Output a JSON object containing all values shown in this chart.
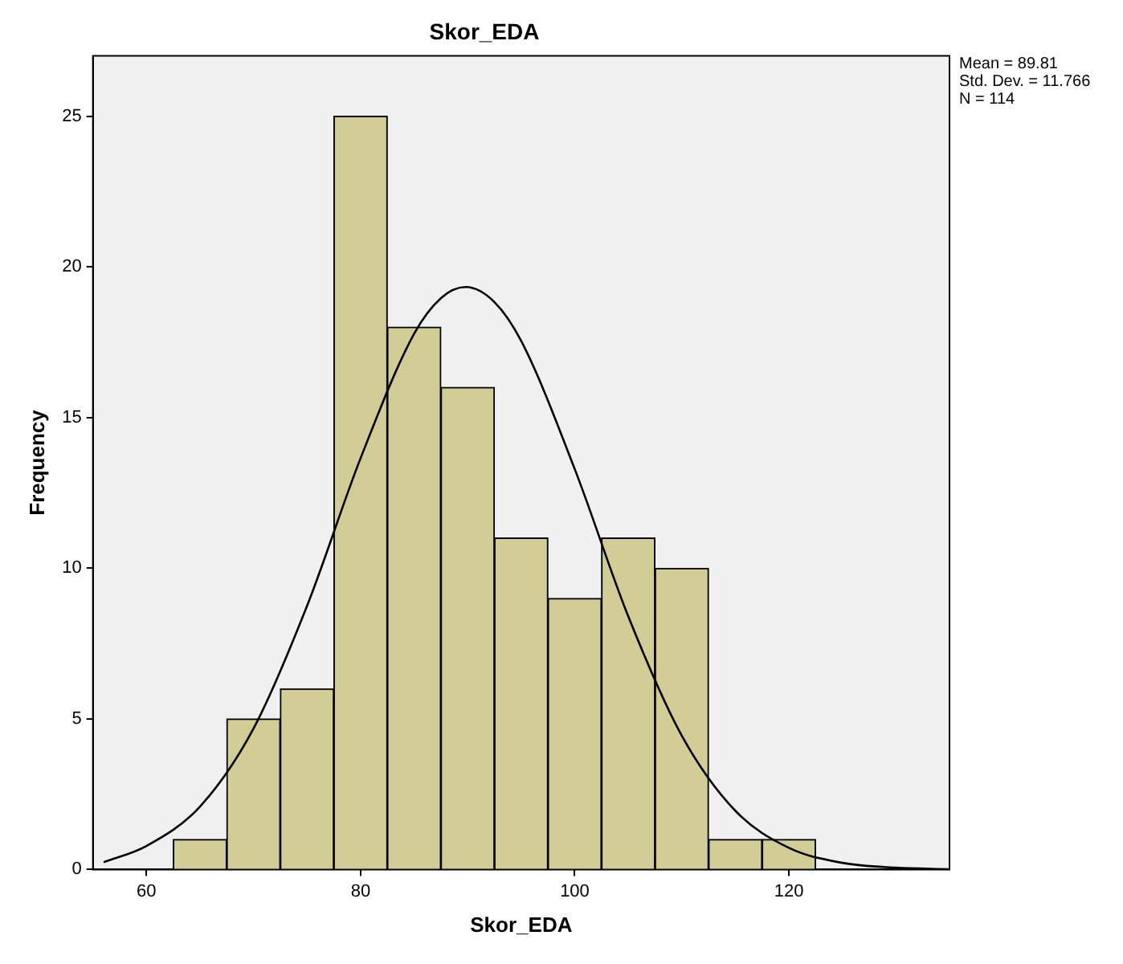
{
  "chart_data": {
    "type": "histogram",
    "title": "Skor_EDA",
    "xlabel": "Skor_EDA",
    "ylabel": "Frequency",
    "bins": [
      62.5,
      67.5,
      72.5,
      77.5,
      82.5,
      87.5,
      92.5,
      97.5,
      102.5,
      107.5,
      112.5,
      117.5,
      122.5
    ],
    "series": [
      {
        "type": "histogram",
        "color": "#d2cc96",
        "values": [
          1,
          5,
          6,
          25,
          18,
          16,
          11,
          9,
          11,
          10,
          1,
          1
        ]
      },
      {
        "type": "line",
        "color": "#000000",
        "x": [
          56,
          60,
          65,
          70,
          75,
          80,
          85,
          87.5,
          89.81,
          92.5,
          95,
          100,
          105,
          110,
          115,
          120,
          125,
          130,
          135
        ],
        "values": [
          0.24,
          0.78,
          2.09,
          4.68,
          8.75,
          13.65,
          17.78,
          18.96,
          19.33,
          18.83,
          17.54,
          13.29,
          8.4,
          4.44,
          1.95,
          0.72,
          0.22,
          0.06,
          0.01
        ]
      }
    ],
    "xlim": [
      55,
      135
    ],
    "xticks": [
      60,
      80,
      100,
      120
    ],
    "ylim": [
      0,
      27
    ],
    "yticks": [
      0,
      5,
      10,
      15,
      20,
      25
    ],
    "grid": false,
    "legend": false,
    "annotations": [
      "Mean = 89.81",
      "Std. Dev. = 11.766",
      "N = 114"
    ]
  }
}
